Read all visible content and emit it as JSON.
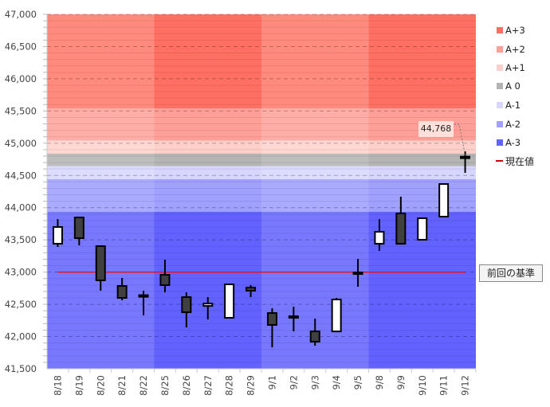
{
  "chart_data": {
    "type": "candlestick",
    "title": "",
    "xlabel": "",
    "ylabel": "",
    "ylim": [
      41500,
      47000
    ],
    "y_ticks": [
      "41,500",
      "42,000",
      "42,500",
      "43,000",
      "43,500",
      "44,000",
      "44,500",
      "45,000",
      "45,500",
      "46,000",
      "46,500",
      "47,000"
    ],
    "y_tick_values": [
      41500,
      42000,
      42500,
      43000,
      43500,
      44000,
      44500,
      45000,
      45500,
      46000,
      46500,
      47000
    ],
    "grid": true,
    "legend_position": "right",
    "categories": [
      "8/18",
      "8/19",
      "8/20",
      "8/21",
      "8/22",
      "8/25",
      "8/26",
      "8/27",
      "8/28",
      "8/29",
      "9/1",
      "9/2",
      "9/3",
      "9/4",
      "9/5",
      "9/8",
      "9/9",
      "9/10",
      "9/11",
      "9/12"
    ],
    "ohlc": [
      {
        "open": 43440,
        "high": 43823,
        "low": 43391,
        "close": 43700
      },
      {
        "open": 43848,
        "high": 43860,
        "low": 43416,
        "close": 43527
      },
      {
        "open": 43403,
        "high": 43415,
        "low": 42711,
        "close": 42872
      },
      {
        "open": 42785,
        "high": 42909,
        "low": 42563,
        "close": 42600
      },
      {
        "open": 42630,
        "high": 42711,
        "low": 42328,
        "close": 42625
      },
      {
        "open": 42958,
        "high": 43193,
        "low": 42686,
        "close": 42798
      },
      {
        "open": 42612,
        "high": 42686,
        "low": 42142,
        "close": 42377
      },
      {
        "open": 42475,
        "high": 42612,
        "low": 42266,
        "close": 42512
      },
      {
        "open": 42291,
        "high": 42822,
        "low": 42280,
        "close": 42810
      },
      {
        "open": 42760,
        "high": 42798,
        "low": 42612,
        "close": 42711
      },
      {
        "open": 42365,
        "high": 42439,
        "low": 41833,
        "close": 42180
      },
      {
        "open": 42303,
        "high": 42463,
        "low": 42080,
        "close": 42300
      },
      {
        "open": 42080,
        "high": 42278,
        "low": 41858,
        "close": 41920
      },
      {
        "open": 42080,
        "high": 42600,
        "low": 42070,
        "close": 42575
      },
      {
        "open": 42995,
        "high": 43205,
        "low": 42773,
        "close": 42970
      },
      {
        "open": 43440,
        "high": 43823,
        "low": 43330,
        "close": 43626
      },
      {
        "open": 43910,
        "high": 44170,
        "low": 43440,
        "close": 43440
      },
      {
        "open": 43502,
        "high": 43836,
        "low": 43495,
        "close": 43836
      },
      {
        "open": 43861,
        "high": 44380,
        "low": 43855,
        "close": 44367
      },
      {
        "open": 44780,
        "high": 44874,
        "low": 44540,
        "close": 44768
      }
    ],
    "bands": [
      {
        "name": "A+3",
        "from": 45541,
        "to": 47000,
        "color": "#ff6f62",
        "color_light": "#ff8b7f"
      },
      {
        "name": "A+2",
        "from": 45040,
        "to": 45541,
        "color": "#ff9f97",
        "color_light": "#ffaea7"
      },
      {
        "name": "A+1",
        "from": 44841,
        "to": 45040,
        "color": "#ffcfca",
        "color_light": "#ffd8d4"
      },
      {
        "name": "A 0",
        "from": 44643,
        "to": 44841,
        "color": "#b4b4b4",
        "color_light": "#bebebe"
      },
      {
        "name": "A-1",
        "from": 44441,
        "to": 44643,
        "color": "#d6d6ff",
        "color_light": "#dcdcff"
      },
      {
        "name": "A-2",
        "from": 43935,
        "to": 44441,
        "color": "#a0a0ff",
        "color_light": "#aaaaff"
      },
      {
        "name": "A-3",
        "from": 41500,
        "to": 43935,
        "color": "#6262ff",
        "color_light": "#7878ff"
      }
    ],
    "reference_line": {
      "value": 43000,
      "label": "前回の基準",
      "color": "#ff0000"
    },
    "current_value": {
      "value": 44768,
      "label": "44,768",
      "legend": "現在値",
      "color": "#cc0000"
    },
    "colors": {
      "up_body": "#ffffff",
      "down_body": "#404040",
      "outline": "#000000"
    }
  }
}
